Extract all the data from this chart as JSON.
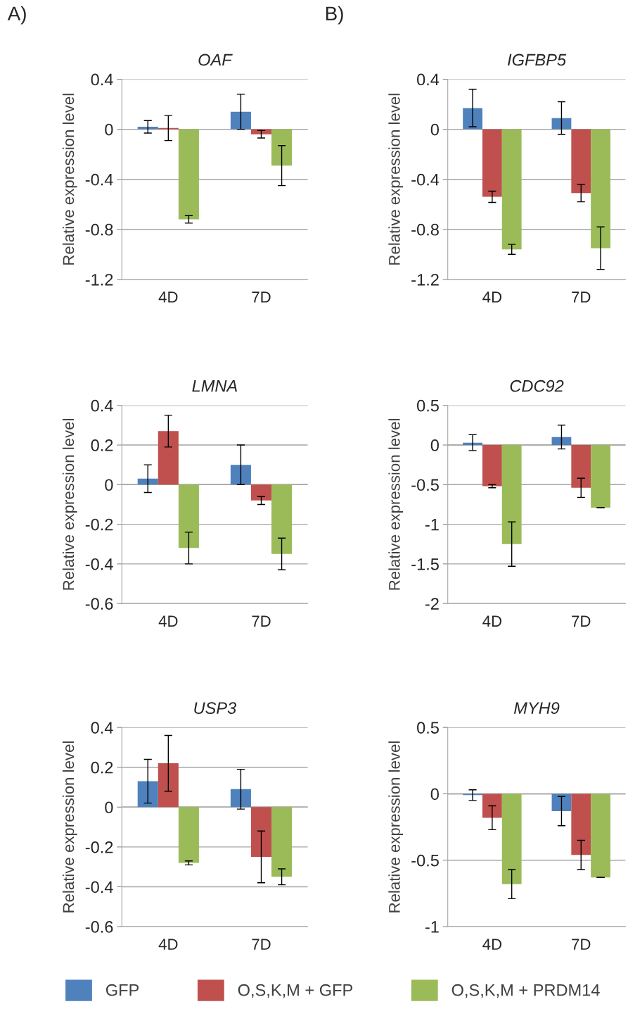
{
  "chart_data": [
    {
      "type": "bar",
      "title": "OAF",
      "ylabel": "Relative expression level",
      "categories": [
        "4D",
        "7D"
      ],
      "ylim": [
        -1.2,
        0.4
      ],
      "yticks": [
        0.4,
        0,
        -0.4,
        -0.8,
        -1.2
      ],
      "grid": "y",
      "annotations": [
        "A)"
      ],
      "legend": "bottom",
      "series": [
        {
          "name": "GFP",
          "color": "#4f81bd",
          "values": [
            0.02,
            0.14
          ],
          "errors": [
            0.05,
            0.14
          ]
        },
        {
          "name": "O,S,K,M + GFP",
          "color": "#c0504d",
          "values": [
            0.01,
            -0.04
          ],
          "errors": [
            0.1,
            0.03
          ]
        },
        {
          "name": "O,S,K,M + PRDM14",
          "color": "#9bbb59",
          "values": [
            -0.72,
            -0.29
          ],
          "errors": [
            0.03,
            0.16
          ]
        }
      ]
    },
    {
      "type": "bar",
      "title": "IGFBP5",
      "ylabel": "Relative expression level",
      "categories": [
        "4D",
        "7D"
      ],
      "ylim": [
        -1.2,
        0.4
      ],
      "yticks": [
        0.4,
        0,
        -0.4,
        -0.8,
        -1.2
      ],
      "grid": "y",
      "annotations": [
        "B)"
      ],
      "series": [
        {
          "color": "#4f81bd",
          "values": [
            0.17,
            0.09
          ],
          "errors": [
            0.15,
            0.13
          ]
        },
        {
          "color": "#c0504d",
          "values": [
            -0.54,
            -0.51
          ],
          "errors": [
            0.045,
            0.07
          ]
        },
        {
          "color": "#9bbb59",
          "values": [
            -0.96,
            -0.95
          ],
          "errors": [
            0.04,
            0.17
          ]
        }
      ]
    },
    {
      "type": "bar",
      "title": "LMNA",
      "ylabel": "Relative expression level",
      "categories": [
        "4D",
        "7D"
      ],
      "ylim": [
        -0.6,
        0.4
      ],
      "yticks": [
        0.4,
        0.2,
        0,
        -0.2,
        -0.4,
        -0.6
      ],
      "grid": "y",
      "series": [
        {
          "color": "#4f81bd",
          "values": [
            0.03,
            0.1
          ],
          "errors": [
            0.07,
            0.1
          ]
        },
        {
          "color": "#c0504d",
          "values": [
            0.27,
            -0.08
          ],
          "errors": [
            0.08,
            0.02
          ]
        },
        {
          "color": "#9bbb59",
          "values": [
            -0.32,
            -0.35
          ],
          "errors": [
            0.08,
            0.08
          ]
        }
      ]
    },
    {
      "type": "bar",
      "title": "CDC92",
      "ylabel": "Relative expression level",
      "categories": [
        "4D",
        "7D"
      ],
      "ylim": [
        -2,
        0.5
      ],
      "yticks": [
        0.5,
        0,
        -0.5,
        -1,
        -1.5,
        -2
      ],
      "grid": "y",
      "series": [
        {
          "color": "#4f81bd",
          "values": [
            0.03,
            0.1
          ],
          "errors": [
            0.1,
            0.15
          ]
        },
        {
          "color": "#c0504d",
          "values": [
            -0.52,
            -0.54
          ],
          "errors": [
            0.02,
            0.12
          ]
        },
        {
          "color": "#9bbb59",
          "values": [
            -1.25,
            -0.79
          ],
          "errors": [
            0.28,
            0
          ]
        }
      ]
    },
    {
      "type": "bar",
      "title": "USP3",
      "ylabel": "Relative expression level",
      "categories": [
        "4D",
        "7D"
      ],
      "ylim": [
        -0.6,
        0.4
      ],
      "yticks": [
        0.4,
        0.2,
        0,
        -0.2,
        -0.4,
        -0.6
      ],
      "grid": "y",
      "series": [
        {
          "color": "#4f81bd",
          "values": [
            0.13,
            0.09
          ],
          "errors": [
            0.11,
            0.1
          ]
        },
        {
          "color": "#c0504d",
          "values": [
            0.22,
            -0.25
          ],
          "errors": [
            0.14,
            0.13
          ]
        },
        {
          "color": "#9bbb59",
          "values": [
            -0.28,
            -0.35
          ],
          "errors": [
            0.01,
            0.04
          ]
        }
      ]
    },
    {
      "type": "bar",
      "title": "MYH9",
      "ylabel": "Relative expression level",
      "categories": [
        "4D",
        "7D"
      ],
      "ylim": [
        -1,
        0.5
      ],
      "yticks": [
        0.5,
        0,
        -0.5,
        -1
      ],
      "grid": "y",
      "series": [
        {
          "color": "#4f81bd",
          "values": [
            -0.01,
            -0.13
          ],
          "errors": [
            0.04,
            0.11
          ]
        },
        {
          "color": "#c0504d",
          "values": [
            -0.18,
            -0.46
          ],
          "errors": [
            0.09,
            0.11
          ]
        },
        {
          "color": "#9bbb59",
          "values": [
            -0.68,
            -0.63
          ],
          "errors": [
            0.11,
            0
          ]
        }
      ]
    }
  ]
}
